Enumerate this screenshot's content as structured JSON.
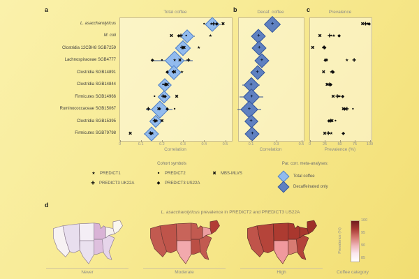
{
  "figure": {
    "panel_letters": {
      "a": "a",
      "b": "b",
      "c": "c",
      "d": "d"
    }
  },
  "legend": {
    "cohort_heading": "Cohort symbols",
    "cohorts": [
      {
        "key": "predict1",
        "symbol": "★",
        "label": "PREDICT1"
      },
      {
        "key": "predict2",
        "symbol": "●",
        "label": "PREDICT2"
      },
      {
        "key": "mbs",
        "symbol": "✖",
        "label": "MBS-MLVS"
      },
      {
        "key": "uk22a",
        "symbol": "✚",
        "label": "PREDICT3 UK22A"
      },
      {
        "key": "us22a",
        "symbol": "◆",
        "label": "PREDICT3 US22A"
      }
    ],
    "meta_heading": "Par. corr. meta-analyses:",
    "meta": [
      {
        "key": "total",
        "label": "Total coffee",
        "fill": "#92bbee",
        "stroke": "#4f7fc4"
      },
      {
        "key": "decaf",
        "label": "Decaffeinated only",
        "fill": "#5f81c1",
        "stroke": "#36589c"
      }
    ]
  },
  "chart_data": [
    {
      "type": "forest",
      "panel": "a",
      "title": "Total coffee",
      "xlabel": "Correlation",
      "xlim": [
        0,
        0.53
      ],
      "tick_labels": [
        "0",
        "0.1",
        "0.2",
        "0.3",
        "0.4",
        "0.5"
      ],
      "tick_values": [
        0,
        0.1,
        0.2,
        0.3,
        0.4,
        0.5
      ],
      "rows": [
        {
          "label": "L. asaccharolyticus",
          "italic": true,
          "est": 0.44,
          "lo": 0.41,
          "hi": 0.48,
          "size": 15,
          "points": [
            [
              "predict2",
              0.4
            ],
            [
              "uk22a",
              0.445
            ],
            [
              "us22a",
              0.46
            ],
            [
              "mbs",
              0.49
            ],
            [
              "predict1",
              0.435
            ]
          ]
        },
        {
          "label": "M. coli",
          "italic": true,
          "est": 0.32,
          "lo": 0.28,
          "hi": 0.355,
          "size": 14,
          "points": [
            [
              "mbs",
              0.245
            ],
            [
              "us22a",
              0.28
            ],
            [
              "uk22a",
              0.29
            ],
            [
              "predict1",
              0.43
            ],
            [
              "predict2",
              0.315
            ]
          ]
        },
        {
          "label": "Clostridia 12CBH8 SGB7259",
          "italic": false,
          "est": 0.3,
          "lo": 0.275,
          "hi": 0.325,
          "size": 16,
          "points": [
            [
              "predict1",
              0.375
            ],
            [
              "predict2",
              0.3
            ],
            [
              "mbs",
              0.305
            ],
            [
              "uk22a",
              0.295
            ],
            [
              "us22a",
              0.3
            ]
          ]
        },
        {
          "label": "Lachnospiraceae SGB4777",
          "italic": false,
          "est": 0.26,
          "lo": 0.15,
          "hi": 0.345,
          "size": 20,
          "points": [
            [
              "us22a",
              0.155
            ],
            [
              "predict2",
              0.2
            ],
            [
              "mbs",
              0.285
            ],
            [
              "uk22a",
              0.325
            ],
            [
              "predict1",
              0.26
            ]
          ]
        },
        {
          "label": "Clostridia SGB14891",
          "italic": false,
          "est": 0.255,
          "lo": 0.23,
          "hi": 0.28,
          "size": 15,
          "points": [
            [
              "us22a",
              0.225
            ],
            [
              "mbs",
              0.26
            ],
            [
              "predict1",
              0.295
            ],
            [
              "predict2",
              0.25
            ],
            [
              "uk22a",
              0.255
            ]
          ]
        },
        {
          "label": "Clostridia SGB14844",
          "italic": false,
          "est": 0.215,
          "lo": 0.19,
          "hi": 0.24,
          "size": 14,
          "points": [
            [
              "predict2",
              0.205
            ],
            [
              "mbs",
              0.225
            ],
            [
              "predict1",
              0.215
            ],
            [
              "uk22a",
              0.215
            ],
            [
              "us22a",
              0.22
            ]
          ]
        },
        {
          "label": "Firmicutes SGB14966",
          "italic": false,
          "est": 0.21,
          "lo": 0.185,
          "hi": 0.235,
          "size": 13,
          "points": [
            [
              "predict2",
              0.165
            ],
            [
              "mbs",
              0.27
            ],
            [
              "predict1",
              0.21
            ],
            [
              "uk22a",
              0.205
            ],
            [
              "us22a",
              0.215
            ]
          ]
        },
        {
          "label": "Ruminococcaceae SGB15067",
          "italic": false,
          "est": 0.19,
          "lo": 0.125,
          "hi": 0.25,
          "size": 18,
          "points": [
            [
              "uk22a",
              0.135
            ],
            [
              "us22a",
              0.225
            ],
            [
              "predict2",
              0.26
            ],
            [
              "mbs",
              0.185
            ],
            [
              "predict1",
              0.19
            ]
          ]
        },
        {
          "label": "Clostridia SGB15395",
          "italic": false,
          "est": 0.17,
          "lo": 0.15,
          "hi": 0.19,
          "size": 13,
          "points": [
            [
              "mbs",
              0.2
            ],
            [
              "predict2",
              0.17
            ],
            [
              "predict1",
              0.175
            ],
            [
              "uk22a",
              0.165
            ],
            [
              "us22a",
              0.17
            ]
          ]
        },
        {
          "label": "Firmicutes SGB79798",
          "italic": false,
          "est": 0.15,
          "lo": 0.115,
          "hi": 0.185,
          "size": 15,
          "points": [
            [
              "mbs",
              0.05
            ],
            [
              "predict2",
              0.15
            ],
            [
              "predict1",
              0.155
            ],
            [
              "uk22a",
              0.145
            ],
            [
              "us22a",
              0.15
            ]
          ]
        }
      ]
    },
    {
      "type": "forest",
      "panel": "b",
      "title": "Decaf. coffee",
      "xlabel": "Correlation",
      "xlim": [
        0,
        0.52
      ],
      "tick_labels": [
        "0.1",
        "0.3",
        "0.5"
      ],
      "tick_values": [
        0.1,
        0.3,
        0.5
      ],
      "rows": [
        {
          "est": 0.27,
          "lo": 0.22,
          "hi": 0.32,
          "size": 17
        },
        {
          "est": 0.16,
          "lo": 0.125,
          "hi": 0.195,
          "size": 15
        },
        {
          "est": 0.165,
          "lo": 0.135,
          "hi": 0.195,
          "size": 15
        },
        {
          "est": 0.185,
          "lo": 0.145,
          "hi": 0.225,
          "size": 15
        },
        {
          "est": 0.15,
          "lo": 0.105,
          "hi": 0.195,
          "size": 15
        },
        {
          "est": 0.1,
          "lo": 0.03,
          "hi": 0.17,
          "size": 16
        },
        {
          "est": 0.105,
          "lo": 0.01,
          "hi": 0.2,
          "size": 17
        },
        {
          "est": 0.085,
          "lo": -0.01,
          "hi": 0.18,
          "size": 18
        },
        {
          "est": 0.1,
          "lo": 0.055,
          "hi": 0.145,
          "size": 14
        },
        {
          "est": 0.11,
          "lo": 0.07,
          "hi": 0.15,
          "size": 15
        }
      ]
    },
    {
      "type": "scatter",
      "panel": "c",
      "title": "Prevalence",
      "xlabel": "Prevalence (%)",
      "xlim": [
        0,
        100
      ],
      "tick_labels": [
        "0",
        "25",
        "50",
        "75",
        "100"
      ],
      "tick_values": [
        0,
        25,
        50,
        75,
        100
      ],
      "rows": [
        {
          "points": [
            [
              "mbs",
              88
            ],
            [
              "uk22a",
              93
            ],
            [
              "predict1",
              96
            ],
            [
              "predict2",
              97
            ],
            [
              "us22a",
              99
            ]
          ]
        },
        {
          "points": [
            [
              "mbs",
              17
            ],
            [
              "uk22a",
              33
            ],
            [
              "predict2",
              36
            ],
            [
              "predict1",
              40
            ],
            [
              "us22a",
              49
            ]
          ]
        },
        {
          "points": [
            [
              "mbs",
              5
            ],
            [
              "predict2",
              22
            ],
            [
              "predict1",
              23
            ],
            [
              "uk22a",
              24
            ],
            [
              "us22a",
              25
            ]
          ]
        },
        {
          "points": [
            [
              "us22a",
              26
            ],
            [
              "mbs",
              27
            ],
            [
              "predict2",
              29
            ],
            [
              "predict1",
              62
            ],
            [
              "uk22a",
              74
            ]
          ]
        },
        {
          "points": [
            [
              "mbs",
              23
            ],
            [
              "predict1",
              36
            ],
            [
              "predict2",
              37
            ],
            [
              "uk22a",
              38
            ],
            [
              "us22a",
              39
            ]
          ]
        },
        {
          "points": [
            [
              "mbs",
              29
            ],
            [
              "uk22a",
              33
            ],
            [
              "predict1",
              33
            ],
            [
              "predict2",
              34
            ],
            [
              "us22a",
              35
            ]
          ]
        },
        {
          "points": [
            [
              "mbs",
              39
            ],
            [
              "uk22a",
              46
            ],
            [
              "predict1",
              48
            ],
            [
              "predict2",
              50
            ],
            [
              "us22a",
              55
            ]
          ]
        },
        {
          "points": [
            [
              "mbs",
              56
            ],
            [
              "us22a",
              58
            ],
            [
              "predict1",
              60
            ],
            [
              "uk22a",
              62
            ],
            [
              "predict2",
              72
            ]
          ]
        },
        {
          "points": [
            [
              "us22a",
              32
            ],
            [
              "uk22a",
              35
            ],
            [
              "predict1",
              36
            ],
            [
              "mbs",
              37
            ],
            [
              "predict2",
              43
            ]
          ]
        },
        {
          "points": [
            [
              "mbs",
              25
            ],
            [
              "uk22a",
              31
            ],
            [
              "predict2",
              33
            ],
            [
              "predict1",
              36
            ],
            [
              "us22a",
              56
            ]
          ]
        }
      ]
    },
    {
      "type": "map",
      "panel": "d",
      "title_italic": "L. asaccharolyticus",
      "title_rest": " prevalence in PREDICT2 and PREDICT3 US22A",
      "xlabel": "Coffee category",
      "maps": [
        {
          "label": "Never",
          "fills": {
            "pacific": "#f7f2f3",
            "mountain": "#e8deee",
            "wnc": "#f4eef5",
            "wsc": "#eae1ef",
            "enc": "#d9b3d6",
            "esc": "#dec0de",
            "sa": "#e6d5ea",
            "midatl": "#f6f1ef",
            "ne": "#faf7ef"
          },
          "stroke": "#8f7f92"
        },
        {
          "label": "Moderate",
          "fills": {
            "pacific": "#c25a50",
            "mountain": "#bf544a",
            "wnc": "#c8645a",
            "wsc": "#f2a9ad",
            "enc": "#c25a50",
            "esc": "#bb4f45",
            "sa": "#c25a50",
            "midatl": "#ec9ea1",
            "ne": "#b23d35"
          },
          "stroke": "#6e3a34"
        },
        {
          "label": "High",
          "fills": {
            "pacific": "#c0544a",
            "mountain": "#b5443a",
            "wnc": "#ad3b31",
            "wsc": "#f0999d",
            "enc": "#aa372e",
            "esc": "#d87b72",
            "sa": "#b4433a",
            "midatl": "#a8362d",
            "ne": "#9e3029"
          },
          "stroke": "#5e2c27"
        }
      ],
      "colorbar": {
        "label": "Prevalence (%)",
        "ticks": [
          "100",
          "95",
          "90",
          "85"
        ],
        "gradient": [
          "#701c1e",
          "#a83a34",
          "#d4766e",
          "#eeb3b8",
          "#fbe7ee",
          "#ffffff"
        ]
      }
    }
  ]
}
